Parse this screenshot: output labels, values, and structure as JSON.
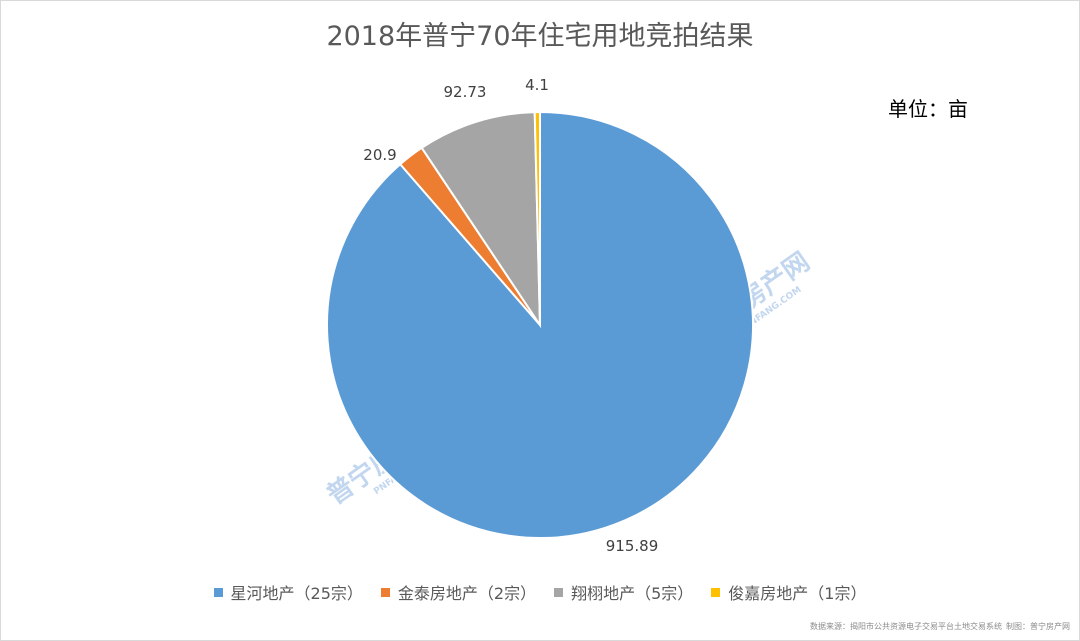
{
  "chart_data": {
    "type": "pie",
    "title": "2018年普宁70年住宅用地竞拍结果",
    "unit_label": "单位：亩",
    "start_angle": "12 o'clock, clockwise",
    "legend_position": "bottom",
    "series": [
      {
        "name": "星河地产（25宗）",
        "value": 915.89,
        "label": "915.89",
        "color": "#5b9bd5"
      },
      {
        "name": "金泰房地产（2宗）",
        "value": 20.9,
        "label": "20.9",
        "color": "#ed7d31"
      },
      {
        "name": "翔栩地产（5宗）",
        "value": 92.73,
        "label": "92.73",
        "color": "#a5a5a5"
      },
      {
        "name": "俊嘉房地产（1宗）",
        "value": 4.1,
        "label": "4.1",
        "color": "#ffc000"
      }
    ]
  },
  "footer": {
    "source": "数据来源：揭阳市公共资源电子交易平台土地交易系统",
    "maker": "制图：普宁房产网"
  },
  "watermark": {
    "text": "普宁房产网",
    "sub": "PNFANG.COM"
  }
}
